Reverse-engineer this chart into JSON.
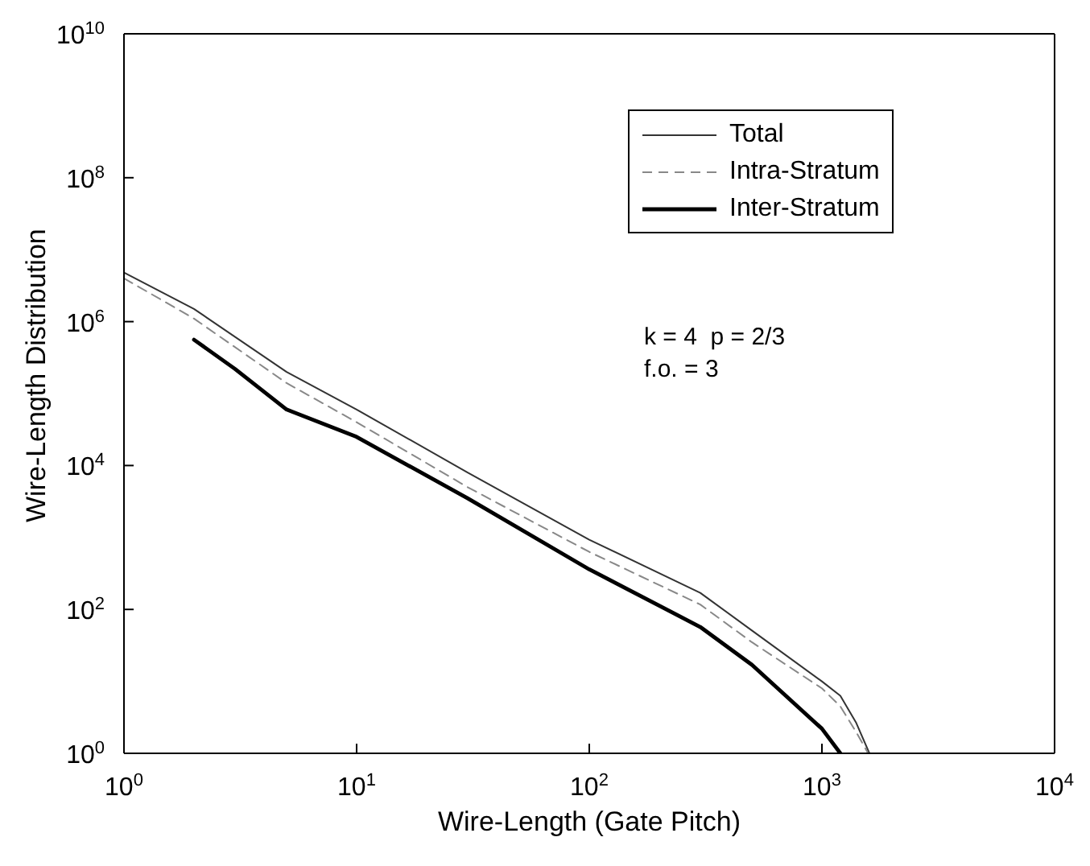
{
  "chart_data": {
    "type": "line",
    "xlabel": "Wire-Length (Gate Pitch)",
    "ylabel": "Wire-Length Distribution",
    "log": "xy",
    "legend": "top right",
    "marker": "none",
    "xlim": [
      1,
      10000
    ],
    "ylim": [
      1,
      10000000000
    ],
    "xticks": [
      {
        "value": 1,
        "label": "10$^{0}$"
      },
      {
        "value": 10,
        "label": "10$^{1}$"
      },
      {
        "value": 100,
        "label": "10$^{2}$"
      },
      {
        "value": 1000,
        "label": "10$^{3}$"
      },
      {
        "value": 10000,
        "label": "10$^{4}$"
      }
    ],
    "yticks": [
      {
        "value": 1,
        "label": "10$^{0}$"
      },
      {
        "value": 100,
        "label": "10$^{2}$"
      },
      {
        "value": 10000,
        "label": "10$^{4}$"
      },
      {
        "value": 1000000,
        "label": "10$^{6}$"
      },
      {
        "value": 100000000,
        "label": "10$^{8}$"
      },
      {
        "value": 10000000000,
        "label": "10$^{10}$"
      }
    ],
    "annotations": [
      "k = 4  p = 2/3",
      "f.o. = 3"
    ],
    "series": [
      {
        "name": "Total",
        "color": "#333333",
        "line_style": "solid",
        "x": [
          1,
          2,
          5,
          10,
          30,
          100,
          300,
          500,
          1000,
          1200,
          1400,
          1600
        ],
        "values": [
          4800000,
          1500000,
          200000,
          60000,
          8000,
          930,
          170,
          51,
          10,
          6.3,
          2.7,
          1
        ]
      },
      {
        "name": "Intra-Stratum",
        "color": "#888888",
        "line_style": "dashed",
        "x": [
          1,
          2,
          5,
          10,
          30,
          100,
          300,
          500,
          1000,
          1200,
          1400,
          1580
        ],
        "values": [
          4000000,
          1100000,
          140000,
          40000,
          5000,
          630,
          117,
          35,
          8,
          4.5,
          2,
          1
        ]
      },
      {
        "name": "Inter-Stratum",
        "color": "#000000",
        "line_style": "solid",
        "x": [
          2,
          3,
          5,
          10,
          30,
          100,
          300,
          500,
          1000,
          1200
        ],
        "values": [
          560000,
          220000,
          60000,
          25000,
          3500,
          360,
          57,
          17,
          2.2,
          1
        ]
      }
    ]
  }
}
